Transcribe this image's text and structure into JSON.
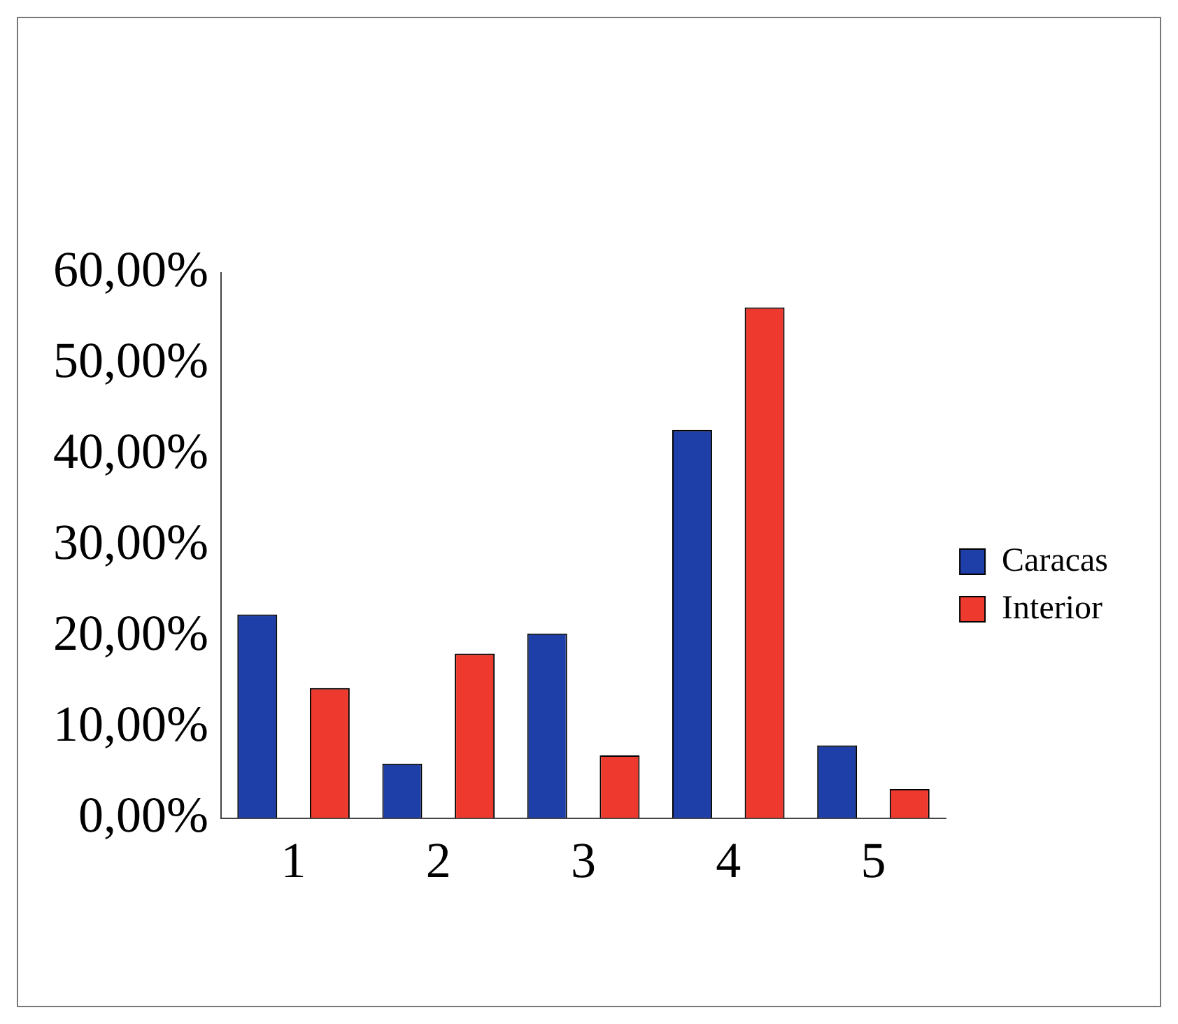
{
  "chart_data": {
    "type": "bar",
    "categories": [
      "1",
      "2",
      "3",
      "4",
      "5"
    ],
    "series": [
      {
        "name": "Caracas",
        "color": "#1f3fa8",
        "values": [
          22.4,
          6.0,
          20.3,
          42.7,
          8.0
        ]
      },
      {
        "name": "Interior",
        "color": "#ee3a2e",
        "values": [
          14.3,
          18.1,
          6.9,
          56.2,
          3.2
        ]
      }
    ],
    "ylim": [
      0,
      60
    ],
    "yticks": [
      {
        "value": 0,
        "label": "0,00%"
      },
      {
        "value": 10,
        "label": "10,00%"
      },
      {
        "value": 20,
        "label": "20,00%"
      },
      {
        "value": 30,
        "label": "30,00%"
      },
      {
        "value": 40,
        "label": "40,00%"
      },
      {
        "value": 50,
        "label": "50,00%"
      },
      {
        "value": 60,
        "label": "60,00%"
      }
    ],
    "grid": false,
    "legend": "right"
  }
}
